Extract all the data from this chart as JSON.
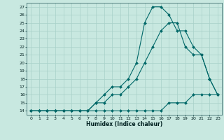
{
  "title": "",
  "xlabel": "Humidex (Indice chaleur)",
  "ylabel": "",
  "bg_color": "#c8e8e0",
  "line_color": "#006868",
  "grid_color": "#a8d0c8",
  "ylim": [
    13.5,
    27.5
  ],
  "xlim": [
    -0.5,
    23.5
  ],
  "yticks": [
    14,
    15,
    16,
    17,
    18,
    19,
    20,
    21,
    22,
    23,
    24,
    25,
    26,
    27
  ],
  "xticks": [
    0,
    1,
    2,
    3,
    4,
    5,
    6,
    7,
    8,
    9,
    10,
    11,
    12,
    13,
    14,
    15,
    16,
    17,
    18,
    19,
    20,
    21,
    22,
    23
  ],
  "line1_x": [
    0,
    1,
    2,
    3,
    4,
    5,
    6,
    7,
    8,
    9,
    10,
    11,
    12,
    13,
    14,
    15,
    16,
    17,
    18,
    19,
    20,
    21,
    22,
    23
  ],
  "line1_y": [
    14,
    14,
    14,
    14,
    14,
    14,
    14,
    14,
    14,
    14,
    14,
    14,
    14,
    14,
    14,
    14,
    14,
    15,
    15,
    15,
    16,
    16,
    16,
    16
  ],
  "line2_x": [
    0,
    1,
    2,
    3,
    4,
    5,
    6,
    7,
    8,
    9,
    10,
    11,
    12,
    13,
    14,
    15,
    16,
    17,
    18,
    19,
    20,
    21,
    22,
    23
  ],
  "line2_y": [
    14,
    14,
    14,
    14,
    14,
    14,
    14,
    14,
    15,
    15,
    16,
    16,
    17,
    18,
    20,
    22,
    24,
    25,
    25,
    22,
    21,
    21,
    18,
    16
  ],
  "line3_x": [
    0,
    1,
    2,
    3,
    4,
    5,
    6,
    7,
    8,
    9,
    10,
    11,
    12,
    13,
    14,
    15,
    16,
    17,
    18,
    19,
    20,
    21,
    22,
    23
  ],
  "line3_y": [
    14,
    14,
    14,
    14,
    14,
    14,
    14,
    14,
    15,
    16,
    17,
    17,
    18,
    20,
    25,
    27,
    27,
    26,
    24,
    24,
    22,
    21,
    18,
    16
  ],
  "xlabel_fontsize": 5.5,
  "tick_fontsize": 4.5,
  "linewidth": 0.8,
  "markersize": 2.0
}
